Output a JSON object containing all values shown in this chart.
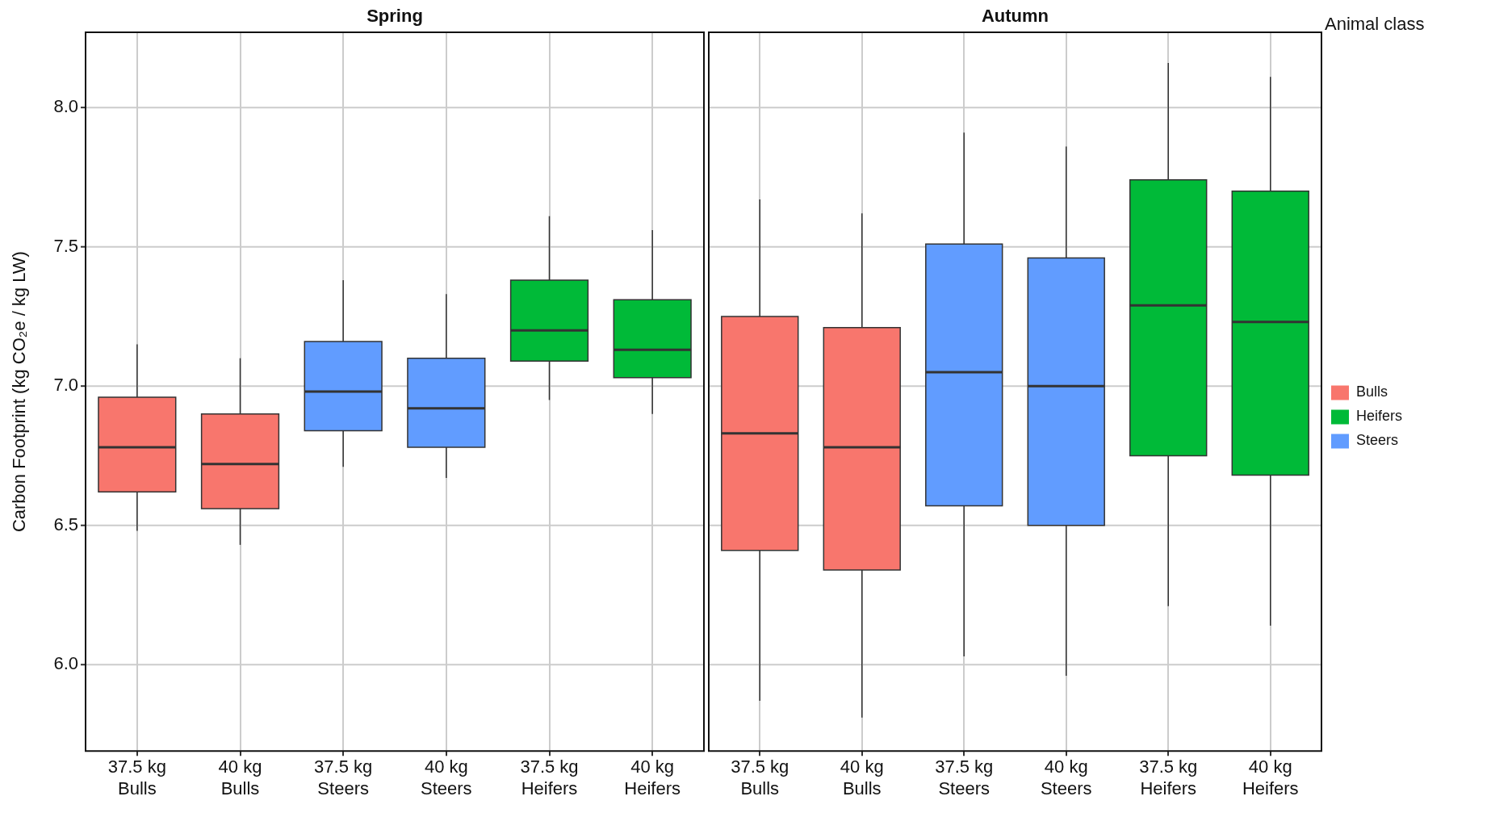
{
  "chart_data": [
    {
      "type": "box",
      "title": "Spring",
      "ylabel": "Carbon Footprint (kg CO₂e / kg LW)",
      "categories": [
        "37.5 kg\nBulls",
        "40 kg\nBulls",
        "37.5 kg\nSteers",
        "40 kg\nSteers",
        "37.5 kg\nHeifers",
        "40 kg\nHeifers"
      ],
      "series": [
        {
          "color": "#f8766d",
          "boxes": [
            {
              "low": 6.48,
              "q1": 6.62,
              "median": 6.78,
              "q3": 6.96,
              "high": 7.15
            },
            {
              "low": 6.43,
              "q1": 6.56,
              "median": 6.72,
              "q3": 6.9,
              "high": 7.1
            },
            null,
            null,
            null,
            null
          ]
        },
        {
          "color": "#00ba38",
          "boxes": [
            null,
            null,
            null,
            null,
            {
              "low": 6.95,
              "q1": 7.09,
              "median": 7.2,
              "q3": 7.38,
              "high": 7.61
            },
            {
              "low": 6.9,
              "q1": 7.03,
              "median": 7.13,
              "q3": 7.31,
              "high": 7.56
            }
          ]
        },
        {
          "color": "#619cff",
          "boxes": [
            null,
            null,
            {
              "low": 6.71,
              "q1": 6.84,
              "median": 6.98,
              "q3": 7.16,
              "high": 7.38
            },
            {
              "low": 6.67,
              "q1": 6.78,
              "median": 6.92,
              "q3": 7.1,
              "high": 7.33
            },
            null,
            null
          ]
        }
      ],
      "ylim": [
        5.69,
        8.27
      ],
      "yticks": [
        {
          "value": 6,
          "label": "6.0"
        },
        6.5,
        {
          "value": 7,
          "label": "7.0"
        },
        7.5,
        {
          "value": 8,
          "label": "8.0"
        }
      ],
      "grid": true,
      "legend": false
    },
    {
      "type": "box",
      "title": "Autumn",
      "legend_title": "Animal class",
      "categories": [
        "37.5 kg\nBulls",
        "40 kg\nBulls",
        "37.5 kg\nSteers",
        "40 kg\nSteers",
        "37.5 kg\nHeifers",
        "40 kg\nHeifers"
      ],
      "series": [
        {
          "name": "Bulls",
          "color": "#f8766d",
          "boxes": [
            {
              "low": 5.87,
              "q1": 6.41,
              "median": 6.83,
              "q3": 7.25,
              "high": 7.67
            },
            {
              "low": 5.81,
              "q1": 6.34,
              "median": 6.78,
              "q3": 7.21,
              "high": 7.62
            },
            null,
            null,
            null,
            null
          ]
        },
        {
          "name": "Heifers",
          "color": "#00ba38",
          "boxes": [
            null,
            null,
            null,
            null,
            {
              "low": 6.21,
              "q1": 6.75,
              "median": 7.29,
              "q3": 7.74,
              "high": 8.16
            },
            {
              "low": 6.14,
              "q1": 6.68,
              "median": 7.23,
              "q3": 7.7,
              "high": 8.11
            }
          ]
        },
        {
          "name": "Steers",
          "color": "#619cff",
          "boxes": [
            null,
            null,
            {
              "low": 6.03,
              "q1": 6.57,
              "median": 7.05,
              "q3": 7.51,
              "high": 7.91
            },
            {
              "low": 5.96,
              "q1": 6.5,
              "median": 7.0,
              "q3": 7.46,
              "high": 7.86
            },
            null,
            null
          ]
        }
      ],
      "ylim": [
        5.69,
        8.27
      ],
      "yticks": [
        6,
        6.5,
        7,
        7.5,
        8
      ],
      "grid": true,
      "legend": "right",
      "tick_labels": "x"
    }
  ]
}
